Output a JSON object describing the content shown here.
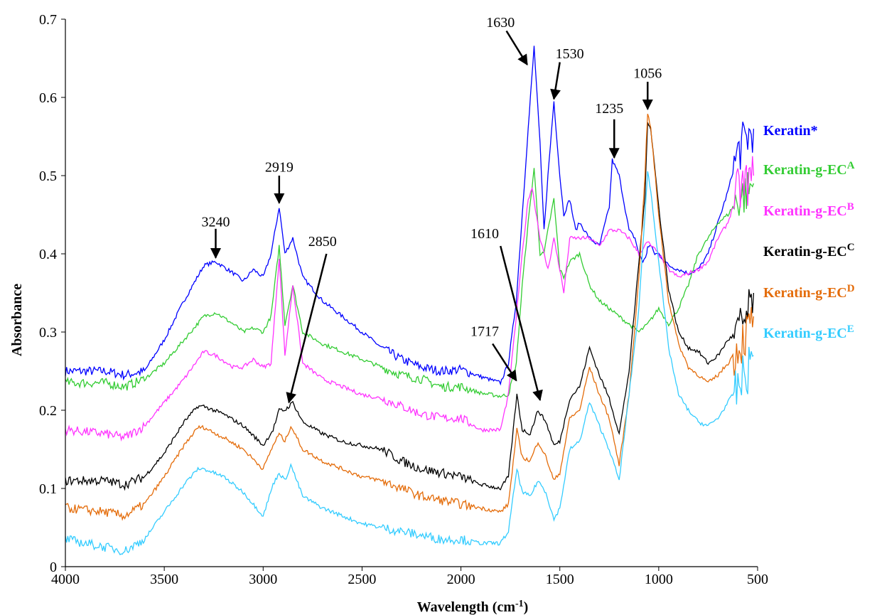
{
  "chart_data": {
    "type": "line",
    "title": "",
    "xlabel": "Wavelength (cm",
    "xlabel_sup": "-1",
    "xlabel_tail": ")",
    "ylabel": "Absorbance",
    "xlim": [
      4000,
      500
    ],
    "ylim": [
      0,
      0.7
    ],
    "x_reversed": true,
    "grid": false,
    "legend_position": "right",
    "x_ticks": [
      4000,
      3500,
      3000,
      2500,
      2000,
      1500,
      1000,
      500
    ],
    "x_tick_labels": [
      "4000",
      "3500",
      "3000",
      "2500",
      "2000",
      "1500",
      "1000",
      "500"
    ],
    "y_ticks": [
      0,
      0.1,
      0.2,
      0.3,
      0.4,
      0.5,
      0.6,
      0.7
    ],
    "y_tick_labels": [
      "0",
      "0.1",
      "0.2",
      "0.3",
      "0.4",
      "0.5",
      "0.6",
      "0.7"
    ],
    "series": [
      {
        "name": "Keratin*",
        "label_main": "Keratin*",
        "label_sup": "",
        "color": "#0000ff",
        "x": [
          4000,
          3800,
          3700,
          3600,
          3500,
          3400,
          3300,
          3240,
          3150,
          3100,
          3050,
          3000,
          2960,
          2919,
          2890,
          2850,
          2800,
          2700,
          2600,
          2500,
          2400,
          2300,
          2200,
          2100,
          2000,
          1900,
          1800,
          1760,
          1720,
          1690,
          1660,
          1630,
          1600,
          1580,
          1560,
          1530,
          1500,
          1480,
          1450,
          1420,
          1400,
          1350,
          1300,
          1250,
          1235,
          1200,
          1150,
          1120,
          1100,
          1080,
          1060,
          1056,
          1040,
          1020,
          1000,
          950,
          900,
          850,
          800,
          750,
          700,
          650,
          600,
          550,
          520
        ],
        "y": [
          0.25,
          0.25,
          0.245,
          0.25,
          0.29,
          0.34,
          0.385,
          0.39,
          0.375,
          0.365,
          0.38,
          0.37,
          0.4,
          0.46,
          0.4,
          0.42,
          0.37,
          0.34,
          0.32,
          0.3,
          0.28,
          0.265,
          0.255,
          0.25,
          0.252,
          0.243,
          0.235,
          0.26,
          0.34,
          0.45,
          0.56,
          0.665,
          0.54,
          0.43,
          0.5,
          0.595,
          0.5,
          0.45,
          0.47,
          0.43,
          0.44,
          0.42,
          0.41,
          0.46,
          0.52,
          0.5,
          0.43,
          0.42,
          0.4,
          0.39,
          0.4,
          0.41,
          0.41,
          0.4,
          0.4,
          0.385,
          0.38,
          0.375,
          0.38,
          0.4,
          0.44,
          0.48,
          0.53,
          0.55,
          0.56
        ]
      },
      {
        "name": "Keratin-g-ECA",
        "label_main": "Keratin-g-EC",
        "label_sup": "A",
        "color": "#33cc33",
        "x": [
          4000,
          3800,
          3700,
          3600,
          3500,
          3400,
          3300,
          3240,
          3150,
          3100,
          3050,
          3000,
          2960,
          2919,
          2890,
          2850,
          2800,
          2700,
          2600,
          2500,
          2400,
          2300,
          2200,
          2100,
          2000,
          1900,
          1800,
          1760,
          1720,
          1690,
          1660,
          1630,
          1600,
          1580,
          1560,
          1530,
          1500,
          1480,
          1450,
          1400,
          1350,
          1300,
          1250,
          1200,
          1150,
          1100,
          1056,
          1000,
          950,
          900,
          850,
          800,
          750,
          700,
          650,
          600,
          550,
          520
        ],
        "y": [
          0.235,
          0.235,
          0.23,
          0.24,
          0.26,
          0.29,
          0.32,
          0.325,
          0.31,
          0.3,
          0.305,
          0.3,
          0.32,
          0.41,
          0.31,
          0.36,
          0.3,
          0.285,
          0.275,
          0.265,
          0.255,
          0.245,
          0.24,
          0.23,
          0.23,
          0.222,
          0.218,
          0.22,
          0.26,
          0.36,
          0.44,
          0.51,
          0.4,
          0.4,
          0.43,
          0.47,
          0.38,
          0.37,
          0.39,
          0.4,
          0.36,
          0.34,
          0.33,
          0.32,
          0.31,
          0.3,
          0.31,
          0.33,
          0.31,
          0.33,
          0.36,
          0.4,
          0.42,
          0.44,
          0.45,
          0.47,
          0.48,
          0.49
        ]
      },
      {
        "name": "Keratin-g-ECB",
        "label_main": "Keratin-g-EC",
        "label_sup": "B",
        "color": "#ff33ff",
        "x": [
          4000,
          3800,
          3700,
          3600,
          3500,
          3400,
          3300,
          3240,
          3150,
          3100,
          3050,
          3000,
          2960,
          2919,
          2890,
          2850,
          2800,
          2700,
          2600,
          2500,
          2400,
          2300,
          2200,
          2100,
          2000,
          1900,
          1800,
          1760,
          1720,
          1690,
          1660,
          1640,
          1600,
          1560,
          1530,
          1500,
          1480,
          1450,
          1400,
          1350,
          1300,
          1250,
          1200,
          1150,
          1100,
          1056,
          1000,
          950,
          900,
          850,
          800,
          750,
          700,
          650,
          600,
          550,
          520
        ],
        "y": [
          0.175,
          0.17,
          0.165,
          0.18,
          0.21,
          0.24,
          0.275,
          0.27,
          0.255,
          0.255,
          0.265,
          0.255,
          0.26,
          0.395,
          0.27,
          0.36,
          0.26,
          0.24,
          0.23,
          0.22,
          0.215,
          0.205,
          0.195,
          0.19,
          0.19,
          0.175,
          0.175,
          0.22,
          0.32,
          0.4,
          0.47,
          0.485,
          0.42,
          0.38,
          0.42,
          0.38,
          0.35,
          0.42,
          0.42,
          0.42,
          0.41,
          0.43,
          0.43,
          0.42,
          0.4,
          0.415,
          0.4,
          0.38,
          0.37,
          0.375,
          0.38,
          0.39,
          0.42,
          0.44,
          0.48,
          0.49,
          0.5
        ]
      },
      {
        "name": "Keratin-g-ECC",
        "label_main": "Keratin-g-EC",
        "label_sup": "C",
        "color": "#000000",
        "x": [
          4000,
          3800,
          3700,
          3600,
          3500,
          3400,
          3330,
          3300,
          3200,
          3100,
          3000,
          2950,
          2919,
          2890,
          2850,
          2800,
          2700,
          2600,
          2500,
          2400,
          2300,
          2200,
          2100,
          2000,
          1900,
          1800,
          1760,
          1717,
          1690,
          1650,
          1610,
          1570,
          1530,
          1500,
          1450,
          1400,
          1350,
          1300,
          1250,
          1200,
          1150,
          1100,
          1070,
          1056,
          1040,
          1000,
          950,
          900,
          850,
          800,
          750,
          700,
          650,
          600,
          550,
          520
        ],
        "y": [
          0.11,
          0.11,
          0.105,
          0.115,
          0.145,
          0.185,
          0.205,
          0.205,
          0.195,
          0.18,
          0.155,
          0.175,
          0.2,
          0.2,
          0.21,
          0.185,
          0.17,
          0.16,
          0.155,
          0.15,
          0.135,
          0.125,
          0.12,
          0.115,
          0.105,
          0.1,
          0.115,
          0.22,
          0.175,
          0.17,
          0.2,
          0.185,
          0.155,
          0.16,
          0.215,
          0.23,
          0.28,
          0.245,
          0.215,
          0.17,
          0.25,
          0.39,
          0.47,
          0.57,
          0.56,
          0.46,
          0.355,
          0.3,
          0.28,
          0.275,
          0.26,
          0.27,
          0.29,
          0.3,
          0.32,
          0.35
        ]
      },
      {
        "name": "Keratin-g-ECD",
        "label_main": "Keratin-g-EC",
        "label_sup": "D",
        "color": "#e46c0a",
        "x": [
          4000,
          3800,
          3700,
          3600,
          3500,
          3400,
          3330,
          3300,
          3200,
          3100,
          3000,
          2950,
          2919,
          2890,
          2860,
          2800,
          2700,
          2600,
          2500,
          2400,
          2300,
          2200,
          2100,
          2000,
          1900,
          1800,
          1760,
          1717,
          1690,
          1650,
          1610,
          1570,
          1530,
          1500,
          1450,
          1400,
          1350,
          1300,
          1250,
          1200,
          1150,
          1100,
          1070,
          1056,
          1040,
          1000,
          950,
          900,
          850,
          800,
          750,
          700,
          650,
          600,
          550,
          520
        ],
        "y": [
          0.075,
          0.07,
          0.065,
          0.08,
          0.115,
          0.155,
          0.178,
          0.178,
          0.165,
          0.15,
          0.125,
          0.155,
          0.17,
          0.16,
          0.18,
          0.15,
          0.135,
          0.125,
          0.115,
          0.11,
          0.1,
          0.09,
          0.085,
          0.08,
          0.075,
          0.07,
          0.08,
          0.175,
          0.14,
          0.135,
          0.16,
          0.14,
          0.11,
          0.12,
          0.19,
          0.2,
          0.255,
          0.22,
          0.19,
          0.13,
          0.22,
          0.37,
          0.5,
          0.58,
          0.56,
          0.45,
          0.34,
          0.285,
          0.255,
          0.245,
          0.235,
          0.245,
          0.26,
          0.28,
          0.3,
          0.32
        ]
      },
      {
        "name": "Keratin-g-ECE",
        "label_main": "Keratin-g-EC",
        "label_sup": "E",
        "color": "#33ccff",
        "x": [
          4000,
          3800,
          3700,
          3600,
          3500,
          3400,
          3330,
          3300,
          3200,
          3100,
          3000,
          2950,
          2919,
          2890,
          2860,
          2800,
          2700,
          2600,
          2500,
          2400,
          2300,
          2200,
          2100,
          2000,
          1900,
          1800,
          1760,
          1717,
          1690,
          1650,
          1610,
          1570,
          1530,
          1500,
          1450,
          1400,
          1350,
          1300,
          1250,
          1200,
          1150,
          1100,
          1070,
          1056,
          1040,
          1000,
          950,
          900,
          850,
          800,
          750,
          700,
          650,
          600,
          550,
          520
        ],
        "y": [
          0.035,
          0.025,
          0.02,
          0.035,
          0.07,
          0.105,
          0.125,
          0.125,
          0.115,
          0.095,
          0.065,
          0.105,
          0.12,
          0.11,
          0.13,
          0.09,
          0.075,
          0.065,
          0.055,
          0.05,
          0.045,
          0.04,
          0.035,
          0.035,
          0.03,
          0.03,
          0.045,
          0.125,
          0.095,
          0.09,
          0.11,
          0.095,
          0.06,
          0.075,
          0.15,
          0.16,
          0.21,
          0.18,
          0.15,
          0.11,
          0.22,
          0.33,
          0.45,
          0.505,
          0.48,
          0.39,
          0.28,
          0.22,
          0.2,
          0.185,
          0.18,
          0.19,
          0.21,
          0.23,
          0.25,
          0.27
        ]
      }
    ],
    "annotations": [
      {
        "label": "3240",
        "x": 3240,
        "y": 0.39
      },
      {
        "label": "2919",
        "x": 2919,
        "y": 0.46
      },
      {
        "label": "2850",
        "x": 2880,
        "y": 0.205
      },
      {
        "label": "1630",
        "x": 1650,
        "y": 0.64
      },
      {
        "label": "1530",
        "x": 1530,
        "y": 0.595
      },
      {
        "label": "1235",
        "x": 1220,
        "y": 0.52
      },
      {
        "label": "1056",
        "x": 1056,
        "y": 0.58
      },
      {
        "label": "1610",
        "x": 1600,
        "y": 0.21
      },
      {
        "label": "1717",
        "x": 1705,
        "y": 0.235
      }
    ]
  }
}
